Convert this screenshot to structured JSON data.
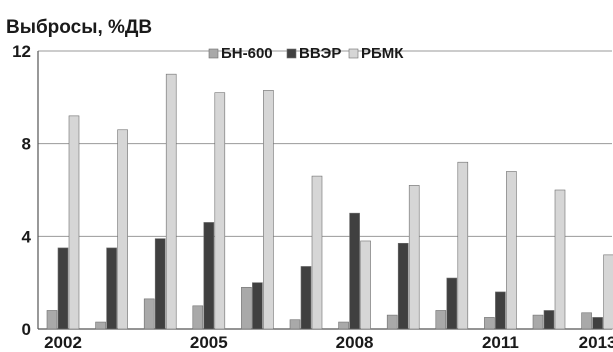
{
  "chart_data": {
    "type": "bar",
    "title": "Выбросы, %ДВ",
    "xlabel": "",
    "ylabel": "",
    "ylim": [
      0,
      12
    ],
    "yticks": [
      0,
      4,
      8,
      12
    ],
    "grid": true,
    "legend_position": "top",
    "categories": [
      "2002",
      "2003",
      "2004",
      "2005",
      "2006",
      "2007",
      "2008",
      "2009",
      "2010",
      "2011",
      "2012",
      "2013"
    ],
    "x_tick_labels": [
      "2002",
      "2005",
      "2008",
      "2011",
      "2013"
    ],
    "series": [
      {
        "name": "БН-600",
        "color": "#a9a9a9",
        "values": [
          0.8,
          0.3,
          1.3,
          1.0,
          1.8,
          0.4,
          0.3,
          0.6,
          0.8,
          0.5,
          0.6,
          0.7
        ]
      },
      {
        "name": "ВВЭР",
        "color": "#404040",
        "values": [
          3.5,
          3.5,
          3.9,
          4.6,
          2.0,
          2.7,
          5.0,
          3.7,
          2.2,
          1.6,
          0.8,
          0.5
        ]
      },
      {
        "name": "РБМК",
        "color": "#d6d6d6",
        "values": [
          9.2,
          8.6,
          11.0,
          10.2,
          10.3,
          6.6,
          3.8,
          6.2,
          7.2,
          6.8,
          6.0,
          3.2
        ]
      }
    ]
  }
}
